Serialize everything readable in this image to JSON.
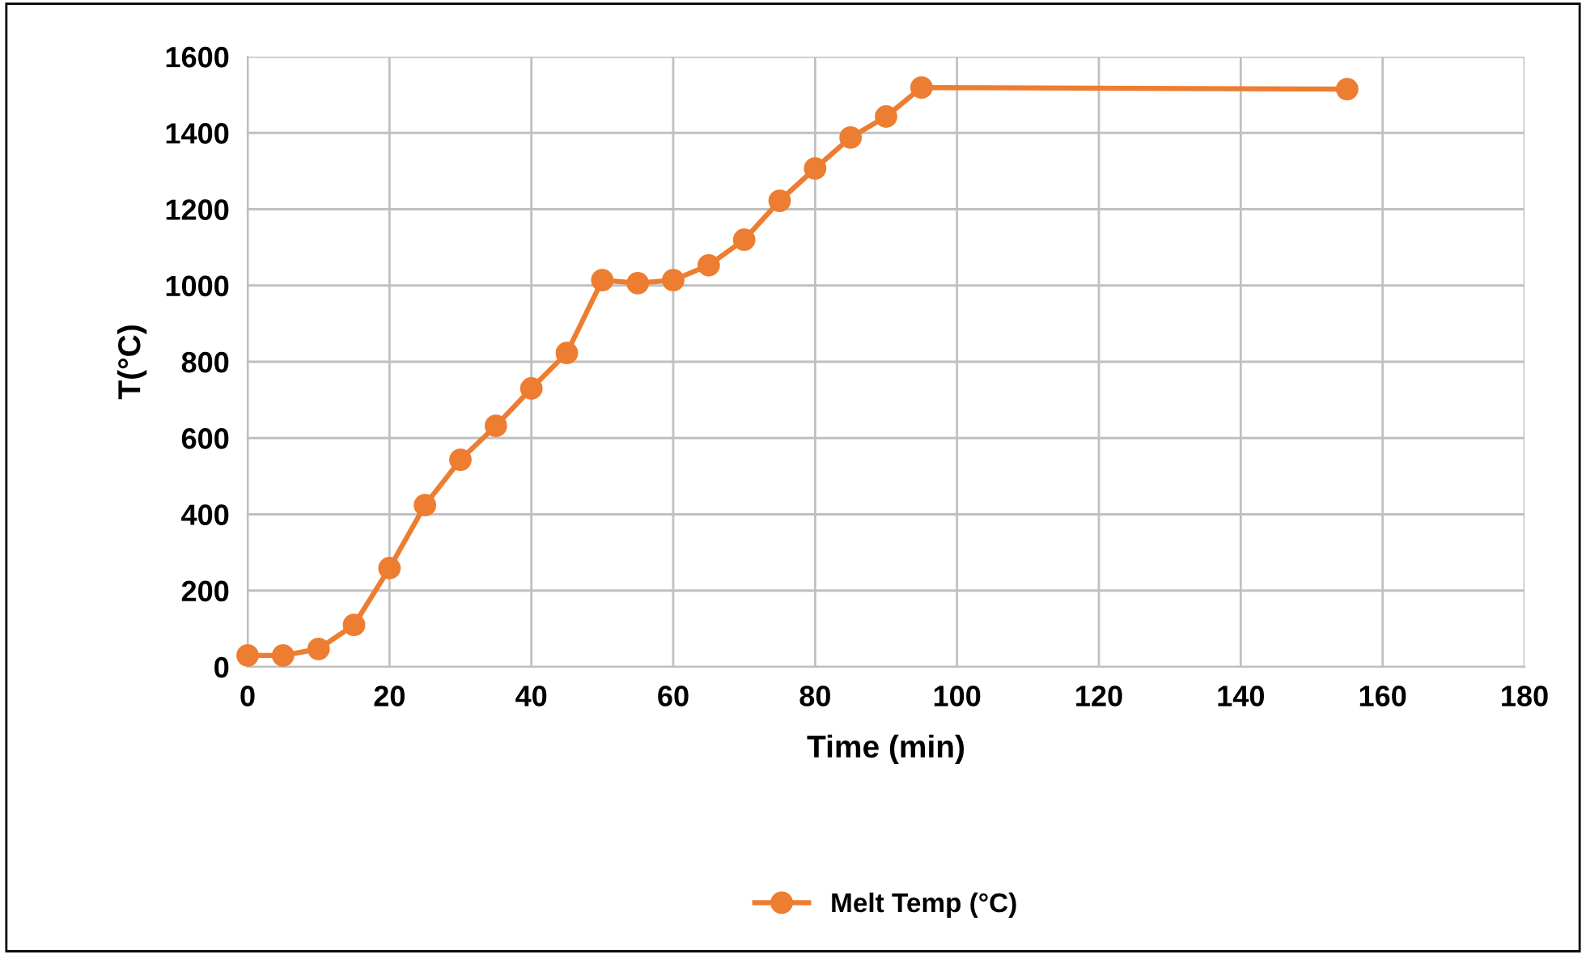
{
  "chart_data": {
    "type": "line",
    "xlabel": "Time (min)",
    "ylabel": "T(°C)",
    "x": [
      0,
      5,
      10,
      15,
      20,
      25,
      30,
      35,
      40,
      45,
      50,
      55,
      60,
      65,
      70,
      75,
      80,
      85,
      90,
      95,
      155
    ],
    "series": [
      {
        "name": "Melt Temp (°C)",
        "color": "#ed7d31",
        "values": [
          30,
          30,
          47,
          110,
          259,
          424,
          543,
          632,
          730,
          823,
          1014,
          1006,
          1014,
          1053,
          1120,
          1222,
          1307,
          1388,
          1443,
          1519,
          1515
        ]
      }
    ],
    "xlim": [
      0,
      180
    ],
    "xticks": [
      0,
      20,
      40,
      60,
      80,
      100,
      120,
      140,
      160,
      180
    ],
    "ylim": [
      0,
      1600
    ],
    "yticks": [
      0,
      200,
      400,
      600,
      800,
      1000,
      1200,
      1400,
      1600
    ],
    "grid": true,
    "legend": "bottom",
    "marker": "circle",
    "line_style": "solid"
  }
}
